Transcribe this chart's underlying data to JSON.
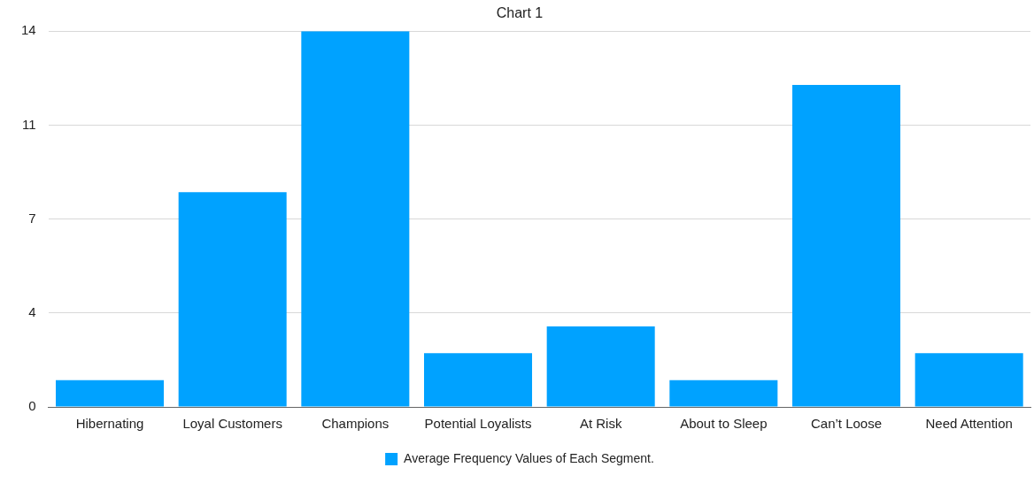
{
  "chart_data": {
    "type": "bar",
    "title": "Chart 1",
    "categories": [
      "Hibernating",
      "Loyal Customers",
      "Champions",
      "Potential Loyalists",
      "At Risk",
      "About to Sleep",
      "Can’t Loose",
      "Need Attention"
    ],
    "series": [
      {
        "name": "Average Frequency Values of Each Segment.",
        "color": "#00a2ff",
        "values": [
          1,
          8,
          14,
          2,
          3,
          1,
          12,
          2
        ]
      }
    ],
    "ylim": [
      0,
      14
    ],
    "yticks": [
      0,
      {
        "value": 3.5,
        "label": "4"
      },
      7,
      {
        "value": 10.5,
        "label": "11"
      },
      14
    ],
    "grid": "y",
    "legend": "bottom"
  }
}
